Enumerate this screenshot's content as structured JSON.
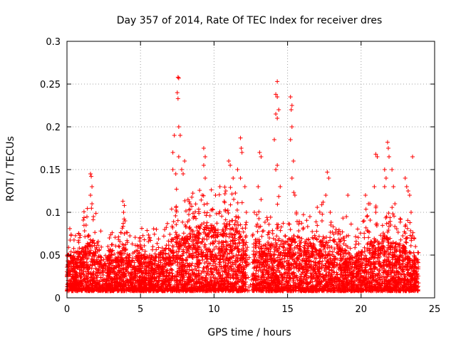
{
  "chart_data": {
    "type": "scatter",
    "title": "Day 357 of 2014, Rate Of TEC Index for receiver dres",
    "xlabel": "GPS time / hours",
    "ylabel": "ROTI / TECUs",
    "xlim": [
      0,
      25
    ],
    "ylim": [
      0,
      0.3
    ],
    "xticks": [
      0,
      5,
      10,
      15,
      20,
      25
    ],
    "xtick_labels": [
      "0",
      "5",
      "10",
      "15",
      "20",
      "25"
    ],
    "yticks": [
      0,
      0.05,
      0.1,
      0.15,
      0.2,
      0.25,
      0.3
    ],
    "ytick_labels": [
      "0",
      "0.05",
      "0.1",
      "0.15",
      "0.2",
      "0.25",
      "0.3"
    ],
    "grid": true,
    "marker": "+",
    "color": "#ff0000",
    "series": [
      {
        "name": "ROTI",
        "points": [
          [
            1.6,
            0.145
          ],
          [
            1.65,
            0.142
          ],
          [
            1.7,
            0.13
          ],
          [
            1.6,
            0.12
          ],
          [
            1.7,
            0.11
          ],
          [
            1.3,
            0.085
          ],
          [
            1.8,
            0.095
          ],
          [
            3.8,
            0.113
          ],
          [
            3.9,
            0.108
          ],
          [
            3.85,
            0.1
          ],
          [
            3.95,
            0.09
          ],
          [
            3.9,
            0.075
          ],
          [
            7.2,
            0.17
          ],
          [
            7.3,
            0.19
          ],
          [
            7.2,
            0.15
          ],
          [
            7.4,
            0.145
          ],
          [
            7.55,
            0.258
          ],
          [
            7.6,
            0.257
          ],
          [
            7.5,
            0.24
          ],
          [
            7.55,
            0.233
          ],
          [
            7.6,
            0.2
          ],
          [
            7.7,
            0.19
          ],
          [
            7.6,
            0.165
          ],
          [
            7.8,
            0.15
          ],
          [
            7.9,
            0.145
          ],
          [
            8.0,
            0.16
          ],
          [
            9.3,
            0.175
          ],
          [
            9.4,
            0.165
          ],
          [
            9.3,
            0.155
          ],
          [
            9.4,
            0.14
          ],
          [
            9.2,
            0.12
          ],
          [
            10.1,
            0.12
          ],
          [
            10.4,
            0.13
          ],
          [
            10.8,
            0.125
          ],
          [
            11.0,
            0.16
          ],
          [
            11.1,
            0.155
          ],
          [
            11.3,
            0.14
          ],
          [
            11.6,
            0.15
          ],
          [
            11.8,
            0.187
          ],
          [
            11.85,
            0.175
          ],
          [
            11.9,
            0.17
          ],
          [
            11.8,
            0.14
          ],
          [
            12.1,
            0.13
          ],
          [
            12.2,
            0.1
          ],
          [
            13.1,
            0.17
          ],
          [
            13.2,
            0.165
          ],
          [
            13.0,
            0.13
          ],
          [
            13.2,
            0.115
          ],
          [
            14.3,
            0.253
          ],
          [
            14.2,
            0.238
          ],
          [
            14.3,
            0.235
          ],
          [
            14.4,
            0.22
          ],
          [
            14.2,
            0.215
          ],
          [
            14.3,
            0.21
          ],
          [
            14.1,
            0.185
          ],
          [
            14.3,
            0.155
          ],
          [
            14.2,
            0.15
          ],
          [
            14.5,
            0.13
          ],
          [
            15.2,
            0.235
          ],
          [
            15.3,
            0.225
          ],
          [
            15.25,
            0.22
          ],
          [
            15.3,
            0.2
          ],
          [
            15.2,
            0.185
          ],
          [
            15.4,
            0.16
          ],
          [
            15.3,
            0.14
          ],
          [
            15.5,
            0.12
          ],
          [
            15.6,
            0.1
          ],
          [
            17.7,
            0.147
          ],
          [
            17.8,
            0.14
          ],
          [
            17.6,
            0.12
          ],
          [
            17.9,
            0.1
          ],
          [
            18.3,
            0.08
          ],
          [
            19.1,
            0.12
          ],
          [
            19.0,
            0.095
          ],
          [
            20.3,
            0.12
          ],
          [
            20.5,
            0.11
          ],
          [
            20.6,
            0.11
          ],
          [
            20.4,
            0.095
          ],
          [
            20.2,
            0.09
          ],
          [
            21.0,
            0.168
          ],
          [
            21.1,
            0.165
          ],
          [
            20.9,
            0.13
          ],
          [
            21.0,
            0.1
          ],
          [
            21.6,
            0.15
          ],
          [
            21.8,
            0.182
          ],
          [
            21.85,
            0.175
          ],
          [
            21.9,
            0.165
          ],
          [
            21.7,
            0.14
          ],
          [
            21.6,
            0.13
          ],
          [
            22.1,
            0.15
          ],
          [
            22.2,
            0.13
          ],
          [
            22.3,
            0.11
          ],
          [
            23.0,
            0.14
          ],
          [
            23.1,
            0.13
          ],
          [
            23.2,
            0.125
          ],
          [
            23.3,
            0.12
          ],
          [
            23.5,
            0.165
          ],
          [
            23.4,
            0.1
          ],
          [
            23.6,
            0.07
          ],
          [
            23.7,
            0.06
          ]
        ],
        "envelope": [
          [
            0.0,
            0.05
          ],
          [
            0.3,
            0.055
          ],
          [
            0.6,
            0.045
          ],
          [
            1.0,
            0.06
          ],
          [
            1.4,
            0.065
          ],
          [
            1.8,
            0.07
          ],
          [
            2.2,
            0.05
          ],
          [
            2.6,
            0.045
          ],
          [
            3.0,
            0.06
          ],
          [
            3.4,
            0.045
          ],
          [
            3.8,
            0.065
          ],
          [
            4.2,
            0.05
          ],
          [
            4.6,
            0.05
          ],
          [
            5.0,
            0.05
          ],
          [
            5.5,
            0.05
          ],
          [
            6.0,
            0.052
          ],
          [
            6.5,
            0.055
          ],
          [
            7.0,
            0.065
          ],
          [
            7.5,
            0.08
          ],
          [
            8.0,
            0.07
          ],
          [
            8.5,
            0.08
          ],
          [
            9.0,
            0.085
          ],
          [
            9.5,
            0.09
          ],
          [
            10.0,
            0.085
          ],
          [
            10.5,
            0.08
          ],
          [
            11.0,
            0.09
          ],
          [
            11.5,
            0.095
          ],
          [
            12.0,
            0.07
          ],
          [
            12.5,
            0.065
          ],
          [
            13.0,
            0.07
          ],
          [
            13.5,
            0.065
          ],
          [
            14.0,
            0.07
          ],
          [
            14.5,
            0.075
          ],
          [
            15.0,
            0.07
          ],
          [
            15.5,
            0.075
          ],
          [
            16.0,
            0.065
          ],
          [
            16.5,
            0.07
          ],
          [
            17.0,
            0.065
          ],
          [
            17.5,
            0.07
          ],
          [
            18.0,
            0.06
          ],
          [
            18.5,
            0.065
          ],
          [
            19.0,
            0.055
          ],
          [
            19.5,
            0.05
          ],
          [
            20.0,
            0.055
          ],
          [
            20.5,
            0.065
          ],
          [
            21.0,
            0.07
          ],
          [
            21.5,
            0.075
          ],
          [
            22.0,
            0.07
          ],
          [
            22.5,
            0.065
          ],
          [
            23.0,
            0.06
          ],
          [
            23.5,
            0.05
          ],
          [
            23.9,
            0.045
          ]
        ],
        "floor": 0.008,
        "x_range": [
          0.0,
          23.9
        ],
        "gap": [
          12.2,
          12.6
        ]
      }
    ]
  }
}
